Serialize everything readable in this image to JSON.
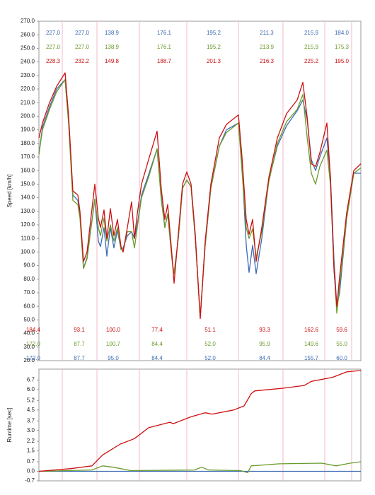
{
  "chart_data": [
    {
      "type": "line",
      "ylabel": "Speed [km/h]",
      "xlim": [
        0,
        455
      ],
      "ylim": [
        20,
        270
      ],
      "yticks": [
        {
          "value": 20,
          "label": "20.0"
        },
        {
          "value": 30,
          "label": "30.0"
        },
        {
          "value": 40,
          "label": "40.0"
        },
        {
          "value": 50,
          "label": "50.0"
        },
        {
          "value": 60,
          "label": "60.0"
        },
        {
          "value": 70,
          "label": "70.0"
        },
        {
          "value": 80,
          "label": "80.0"
        },
        {
          "value": 90,
          "label": "90.0"
        },
        {
          "value": 100,
          "label": "100.0"
        },
        {
          "value": 110,
          "label": "110.0"
        },
        {
          "value": 120,
          "label": "120.0"
        },
        {
          "value": 130,
          "label": "130.0"
        },
        {
          "value": 140,
          "label": "140.0"
        },
        {
          "value": 150,
          "label": "150.0"
        },
        {
          "value": 160,
          "label": "160.0"
        },
        {
          "value": 170,
          "label": "170.0"
        },
        {
          "value": 180,
          "label": "180.0"
        },
        {
          "value": 190,
          "label": "190.0"
        },
        {
          "value": 200,
          "label": "200.0"
        },
        {
          "value": 210,
          "label": "210.0"
        },
        {
          "value": 220,
          "label": "220.0"
        },
        {
          "value": 230,
          "label": "230.0"
        },
        {
          "value": 240,
          "label": "240.0"
        },
        {
          "value": 250,
          "label": "250.0"
        },
        {
          "value": 260,
          "label": "260.0"
        },
        {
          "value": 270,
          "label": "270.0"
        }
      ],
      "xticks": [
        33,
        82,
        142,
        209,
        282,
        345,
        404,
        442
      ],
      "x": [
        0,
        5,
        15,
        25,
        37,
        42,
        48,
        55,
        58,
        63,
        68,
        79,
        84,
        87,
        92,
        96,
        101,
        106,
        111,
        116,
        119,
        125,
        131,
        135,
        139,
        145,
        155,
        167,
        173,
        178,
        182,
        188,
        191,
        197,
        203,
        209,
        215,
        221,
        228,
        235,
        243,
        255,
        265,
        282,
        287,
        293,
        297,
        302,
        307,
        315,
        325,
        337,
        350,
        365,
        373,
        379,
        385,
        391,
        397,
        407,
        412,
        417,
        421,
        425,
        435,
        445,
        455
      ],
      "series": [
        {
          "color": "#3d6bb3",
          "values": [
            172,
            192,
            207,
            220,
            227,
            195,
            142,
            138,
            128,
            88,
            96,
            139,
            108,
            104,
            118,
            97,
            118,
            103,
            116,
            102,
            103,
            112,
            115,
            110,
            120,
            142,
            157,
            176,
            140,
            118,
            128,
            95,
            84,
            110,
            147,
            153,
            148,
            110,
            52,
            105,
            147,
            178,
            190,
            195,
            165,
            105,
            85,
            105,
            84,
            110,
            153,
            178,
            193,
            204,
            212,
            198,
            168,
            160,
            170,
            184,
            156,
            95,
            60,
            70,
            125,
            158,
            158
          ]
        },
        {
          "color": "#6a9a2a",
          "values": [
            172,
            190,
            205,
            218,
            227,
            195,
            138,
            135,
            125,
            88,
            95,
            139,
            118,
            112,
            125,
            108,
            120,
            108,
            118,
            102,
            101,
            115,
            115,
            103,
            118,
            140,
            155,
            176,
            138,
            118,
            128,
            95,
            84,
            110,
            147,
            153,
            148,
            110,
            52,
            105,
            147,
            178,
            188,
            195,
            160,
            118,
            110,
            117,
            96,
            115,
            152,
            180,
            196,
            205,
            216,
            185,
            158,
            150,
            163,
            175,
            150,
            90,
            55,
            75,
            125,
            158,
            162
          ]
        },
        {
          "color": "#cc1010",
          "values": [
            184,
            195,
            210,
            222,
            232,
            200,
            145,
            142,
            130,
            93,
            100,
            150,
            125,
            118,
            131,
            110,
            132,
            112,
            124,
            104,
            100,
            118,
            137,
            110,
            128,
            150,
            168,
            189,
            146,
            124,
            135,
            98,
            77,
            113,
            150,
            159,
            150,
            113,
            51,
            108,
            150,
            184,
            194,
            201,
            170,
            124,
            113,
            124,
            93,
            118,
            155,
            184,
            202,
            212,
            225,
            200,
            165,
            163,
            173,
            195,
            155,
            87,
            60,
            82,
            129,
            160,
            165
          ]
        }
      ],
      "max_labels": {
        "x": [
          20,
          61,
          103,
          177,
          247,
          322,
          385,
          428
        ],
        "rows": [
          {
            "color": "#3d6bb3",
            "values": [
              227,
              227,
              138.9,
              176.1,
              195.2,
              211.3,
              215.9,
              184
            ],
            "value_labels": [
              "227.0",
              "227.0",
              "138.9",
              "176.1",
              "195.2",
              "211.3",
              "215.9",
              "184.0"
            ]
          },
          {
            "color": "#6a9a2a",
            "values": [
              227,
              227,
              138.9,
              176.1,
              195.2,
              213.9,
              215.9,
              175.3
            ],
            "value_labels": [
              "227.0",
              "227.0",
              "138.9",
              "176.1",
              "195.2",
              "213.9",
              "215.9",
              "175.3"
            ]
          },
          {
            "color": "#cc1010",
            "values": [
              228.3,
              232.2,
              149.8,
              188.7,
              201.3,
              216.3,
              225.2,
              195
            ],
            "value_labels": [
              "228.3",
              "232.2",
              "149.8",
              "188.7",
              "201.3",
              "216.3",
              "225.2",
              "195.0"
            ]
          }
        ]
      },
      "min_labels": {
        "x": [
          -8,
          57,
          105,
          167,
          242,
          319,
          385,
          428
        ],
        "rows": [
          {
            "color": "#cc1010",
            "values": [
              184.4,
              93.1,
              100,
              77.4,
              51.1,
              93.3,
              162.6,
              59.6
            ],
            "value_labels": [
              "184.4",
              "93.1",
              "100.0",
              "77.4",
              "51.1",
              "93.3",
              "162.6",
              "59.6"
            ]
          },
          {
            "color": "#6a9a2a",
            "values": [
              172,
              87.7,
              100.7,
              84.4,
              52,
              95.9,
              149.6,
              55
            ],
            "value_labels": [
              "172.0",
              "87.7",
              "100.7",
              "84.4",
              "52.0",
              "95.9",
              "149.6",
              "55.0"
            ]
          },
          {
            "color": "#3d6bb3",
            "values": [
              172,
              87.7,
              95,
              84.4,
              52,
              84.4,
              155.7,
              60
            ],
            "value_labels": [
              "172.0",
              "87.7",
              "95.0",
              "84.4",
              "52.0",
              "84.4",
              "155.7",
              "60.0"
            ]
          }
        ]
      }
    },
    {
      "type": "line",
      "ylabel": "Runtime [sec]",
      "xlim": [
        0,
        455
      ],
      "ylim": [
        -0.7,
        7.5
      ],
      "yticks": [
        -0.7,
        {
          "value": 0,
          "label": "0.0"
        },
        0.7,
        1.5,
        2.2,
        {
          "value": 3,
          "label": "3.0"
        },
        3.7,
        4.5,
        5.2,
        {
          "value": 6,
          "label": "6.0"
        },
        6.7
      ],
      "xticks": [
        33,
        82,
        142,
        209,
        282,
        345,
        404,
        442
      ],
      "series": [
        {
          "color": "#3d6bb3",
          "x": [
            0,
            455
          ],
          "values": [
            0,
            0
          ]
        },
        {
          "color": "#6a9a2a",
          "x": [
            0,
            75,
            90,
            105,
            130,
            220,
            230,
            240,
            285,
            295,
            300,
            340,
            400,
            420,
            440,
            455
          ],
          "values": [
            0,
            0.1,
            0.4,
            0.3,
            0.05,
            0.1,
            0.3,
            0.1,
            0.05,
            -0.1,
            0.4,
            0.55,
            0.6,
            0.4,
            0.6,
            0.7
          ]
        },
        {
          "color": "#cc1010",
          "x": [
            0,
            45,
            75,
            90,
            115,
            135,
            155,
            185,
            190,
            215,
            235,
            245,
            275,
            290,
            300,
            305,
            345,
            375,
            385,
            415,
            435,
            455
          ],
          "values": [
            0,
            0.2,
            0.4,
            1.2,
            2.0,
            2.4,
            3.2,
            3.6,
            3.5,
            4.0,
            4.3,
            4.2,
            4.5,
            4.8,
            5.7,
            5.9,
            6.1,
            6.3,
            6.6,
            6.9,
            7.3,
            7.4
          ]
        }
      ]
    }
  ]
}
